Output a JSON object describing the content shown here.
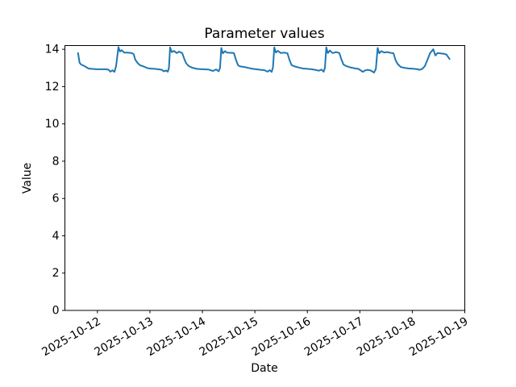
{
  "chart_data": {
    "type": "line",
    "title": "Parameter values",
    "xlabel": "Date",
    "ylabel": "Value",
    "ylim": [
      0,
      14.2
    ],
    "xlim_days": [
      -0.62,
      7.0
    ],
    "grid": false,
    "legend": "none",
    "x_tick_rotation_deg": 30,
    "x_tick_labels": [
      "2025-10-12",
      "2025-10-13",
      "2025-10-14",
      "2025-10-15",
      "2025-10-16",
      "2025-10-17",
      "2025-10-18",
      "2025-10-19"
    ],
    "y_tick_labels": [
      0,
      2,
      4,
      6,
      8,
      10,
      12,
      14
    ],
    "line_color": "#1f77b4",
    "spine_color": "#000000",
    "background_color": "#ffffff",
    "series": [
      {
        "name": "Parameter values",
        "x_origin_date": "2025-10-12",
        "x_unit": "days since 2025-10-12 00:00",
        "x_days": [
          -0.37,
          -0.34,
          -0.31,
          -0.25,
          -0.17,
          -0.11,
          -0.02,
          0.08,
          0.17,
          0.215,
          0.245,
          0.29,
          0.325,
          0.355,
          0.4,
          0.43,
          0.46,
          0.51,
          0.57,
          0.65,
          0.69,
          0.72,
          0.77,
          0.815,
          0.88,
          0.955,
          1.0,
          1.09,
          1.185,
          1.23,
          1.26,
          1.31,
          1.34,
          1.362,
          1.385,
          1.415,
          1.46,
          1.51,
          1.555,
          1.615,
          1.66,
          1.69,
          1.74,
          1.8,
          1.89,
          1.985,
          2.03,
          2.12,
          2.2,
          2.26,
          2.31,
          2.336,
          2.36,
          2.39,
          2.43,
          2.47,
          2.54,
          2.6,
          2.64,
          2.68,
          2.72,
          2.8,
          2.88,
          2.96,
          3.03,
          3.11,
          3.18,
          3.24,
          3.28,
          3.32,
          3.345,
          3.37,
          3.4,
          3.44,
          3.49,
          3.56,
          3.62,
          3.66,
          3.7,
          3.76,
          3.84,
          3.92,
          4.0,
          4.08,
          4.15,
          4.22,
          4.27,
          4.31,
          4.335,
          4.36,
          4.39,
          4.43,
          4.48,
          4.55,
          4.61,
          4.65,
          4.69,
          4.74,
          4.82,
          4.9,
          4.97,
          5.06,
          5.1,
          5.15,
          5.21,
          5.27,
          5.305,
          5.34,
          5.37,
          5.41,
          5.46,
          5.53,
          5.6,
          5.64,
          5.68,
          5.72,
          5.78,
          5.86,
          5.94,
          6.02,
          6.1,
          6.14,
          6.19,
          6.24,
          6.29,
          6.34,
          6.4,
          6.44,
          6.48,
          6.54,
          6.6,
          6.65,
          6.71
        ],
        "values": [
          13.8,
          13.28,
          13.18,
          13.1,
          12.97,
          12.95,
          12.93,
          12.93,
          12.93,
          12.9,
          12.8,
          12.87,
          12.79,
          13.1,
          14.12,
          13.88,
          13.95,
          13.82,
          13.82,
          13.8,
          13.74,
          13.45,
          13.25,
          13.14,
          13.08,
          12.99,
          12.97,
          12.95,
          12.92,
          12.9,
          12.82,
          12.86,
          12.8,
          13.0,
          14.1,
          13.85,
          13.91,
          13.8,
          13.87,
          13.8,
          13.45,
          13.25,
          13.1,
          13.02,
          12.95,
          12.93,
          12.93,
          12.91,
          12.84,
          12.92,
          12.82,
          13.0,
          14.07,
          13.78,
          13.9,
          13.82,
          13.81,
          13.8,
          13.43,
          13.14,
          13.08,
          13.05,
          13.0,
          12.95,
          12.93,
          12.9,
          12.88,
          12.8,
          12.88,
          12.79,
          13.05,
          14.1,
          13.83,
          13.92,
          13.8,
          13.82,
          13.79,
          13.42,
          13.15,
          13.08,
          13.02,
          12.97,
          12.95,
          12.93,
          12.9,
          12.85,
          12.91,
          12.8,
          13.0,
          14.1,
          13.8,
          13.93,
          13.8,
          13.85,
          13.8,
          13.45,
          13.18,
          13.1,
          13.03,
          12.98,
          12.95,
          12.79,
          12.87,
          12.9,
          12.86,
          12.75,
          12.95,
          14.07,
          13.79,
          13.9,
          13.83,
          13.85,
          13.8,
          13.79,
          13.42,
          13.21,
          13.05,
          13.0,
          12.97,
          12.96,
          12.93,
          12.9,
          12.95,
          13.1,
          13.45,
          13.8,
          14.0,
          13.67,
          13.8,
          13.78,
          13.76,
          13.72,
          13.48
        ]
      }
    ]
  }
}
